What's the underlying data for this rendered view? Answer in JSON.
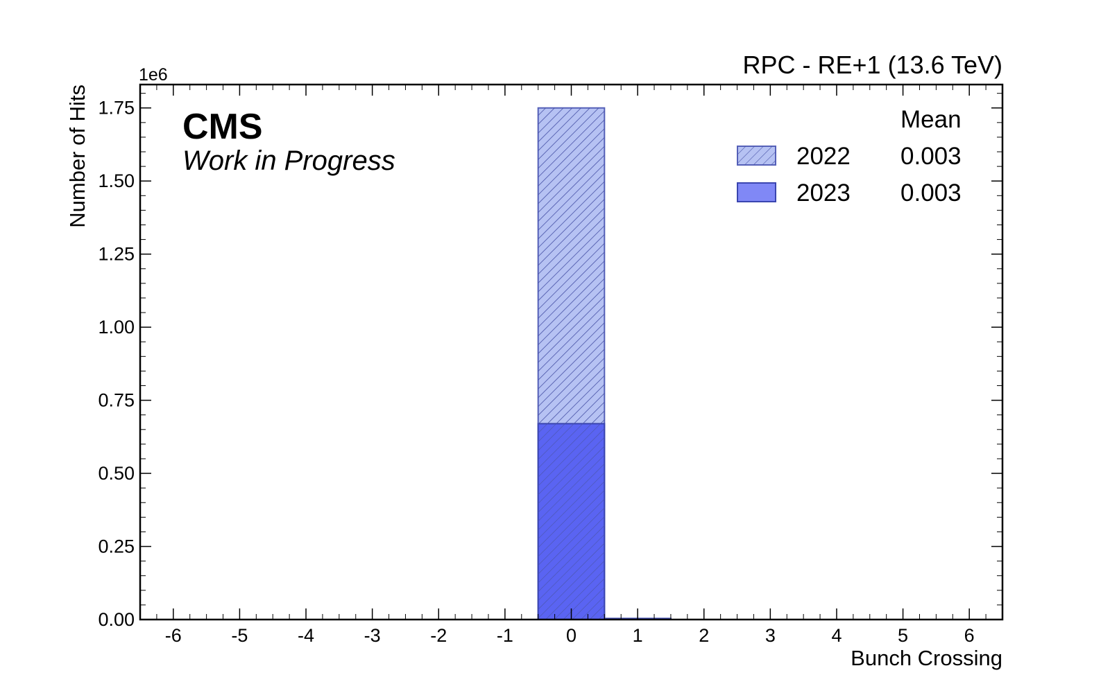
{
  "chart_data": {
    "type": "bar",
    "title": "RPC - RE+1 (13.6 TeV)",
    "experiment": "CMS",
    "status": "Work in Progress",
    "xlabel": "Bunch Crossing",
    "ylabel": "Number of Hits",
    "y_exponent": "1e6",
    "xlim": [
      -6.5,
      6.5
    ],
    "ylim": [
      0,
      1.83
    ],
    "x_ticks": [
      -6,
      -5,
      -4,
      -3,
      -2,
      -1,
      0,
      1,
      2,
      3,
      4,
      5,
      6
    ],
    "x_tick_labels": [
      "-6",
      "-5",
      "-4",
      "-3",
      "-2",
      "-1",
      "0",
      "1",
      "2",
      "3",
      "4",
      "5",
      "6"
    ],
    "y_ticks": [
      0,
      0.25,
      0.5,
      0.75,
      1.0,
      1.25,
      1.5,
      1.75
    ],
    "y_tick_labels": [
      "0.00",
      "0.25",
      "0.50",
      "0.75",
      "1.00",
      "1.25",
      "1.50",
      "1.75"
    ],
    "bin_centers": [
      -6,
      -5,
      -4,
      -3,
      -2,
      -1,
      0,
      1,
      2,
      3,
      4,
      5,
      6
    ],
    "legend_header": "Mean",
    "legend_placement": "top-right",
    "series": [
      {
        "name": "2022",
        "mean": "0.003",
        "style": "hatched",
        "fill": "#b6c2f3",
        "edge": "#5560b8",
        "values": [
          0,
          0,
          0,
          0,
          0,
          0,
          1.75,
          0.004,
          0,
          0,
          0,
          0,
          0
        ]
      },
      {
        "name": "2023",
        "mean": "0.003",
        "style": "solid",
        "fill": "#5a64f2",
        "edge": "#3a45b0",
        "values": [
          0,
          0,
          0,
          0,
          0,
          0,
          0.67,
          0.002,
          0,
          0,
          0,
          0,
          0
        ]
      }
    ]
  }
}
